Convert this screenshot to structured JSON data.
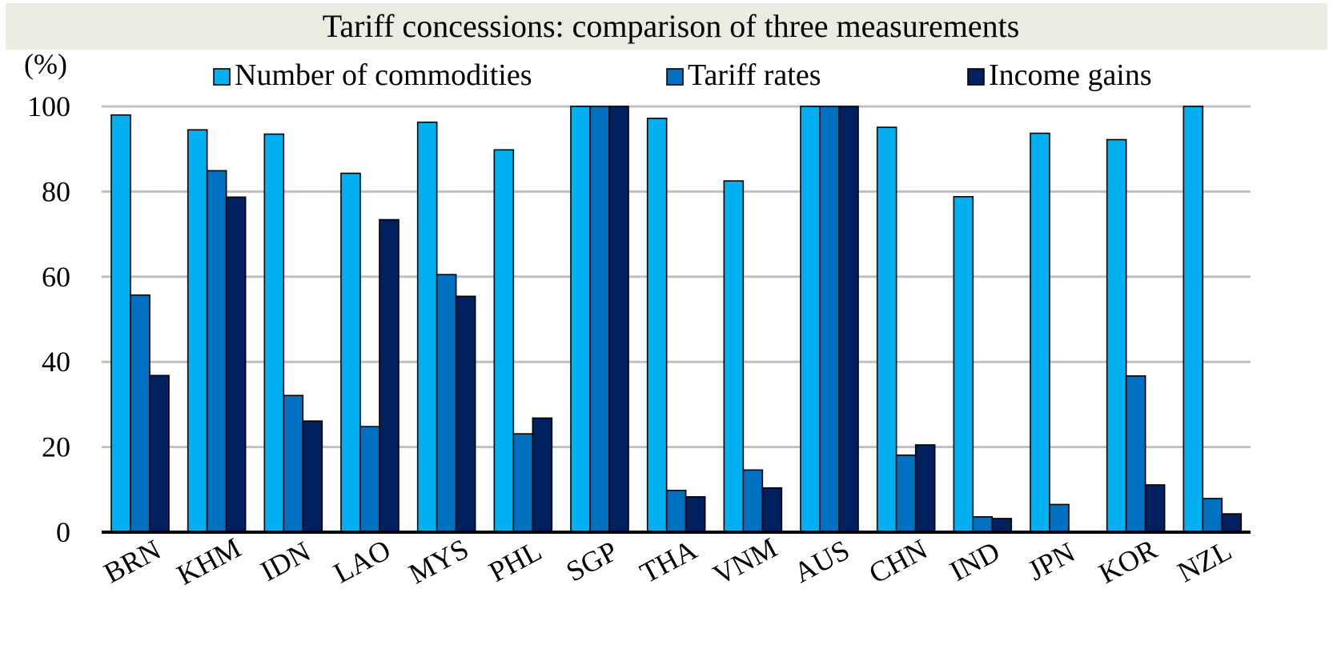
{
  "chart_data": {
    "type": "bar",
    "title": "Tariff concessions: comparison of three measurements",
    "ylabel": "(%)",
    "xlabel": "",
    "ylim": [
      0,
      100
    ],
    "yticks": [
      "0",
      "20",
      "40",
      "60",
      "80",
      "100"
    ],
    "grid": true,
    "legend_position": "top",
    "categories": [
      "BRN",
      "KHM",
      "IDN",
      "LAO",
      "MYS",
      "PHL",
      "SGP",
      "THA",
      "VNM",
      "AUS",
      "CHN",
      "IND",
      "JPN",
      "KOR",
      "NZL"
    ],
    "series": [
      {
        "name": "Number of commodities",
        "color": "#00b0f0",
        "values": [
          98,
          94.5,
          93.5,
          84.3,
          96.3,
          89.8,
          100,
          97.2,
          82.5,
          100,
          95.1,
          78.8,
          93.7,
          92.2,
          100
        ]
      },
      {
        "name": "Tariff rates",
        "color": "#0070c0",
        "values": [
          55.7,
          84.9,
          32.1,
          24.8,
          60.5,
          23.1,
          100,
          9.8,
          14.6,
          100,
          18.1,
          3.6,
          6.5,
          36.7,
          7.9
        ]
      },
      {
        "name": "Income gains",
        "color": "#002060",
        "values": [
          36.8,
          78.7,
          26.1,
          73.4,
          55.4,
          26.8,
          100,
          8.3,
          10.4,
          100,
          20.5,
          3.2,
          0,
          11.1,
          4.3
        ]
      }
    ]
  }
}
